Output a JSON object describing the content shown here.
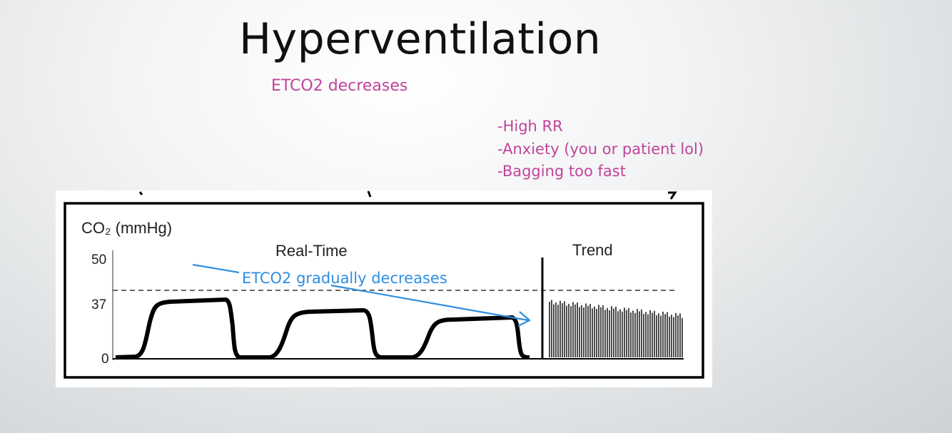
{
  "slide": {
    "title": "Hyperventilation",
    "subtitle": "ETCO2 decreases",
    "bullets": [
      "-High RR",
      "-Anxiety (you or patient lol)",
      "-Bagging too fast"
    ]
  },
  "capnogram": {
    "y_axis_label": "CO₂ (mmHg)",
    "y_ticks": [
      "50",
      "37",
      "0"
    ],
    "realtime_label": "Real-Time",
    "trend_label": "Trend",
    "annotation": "ETCO2 gradually decreases"
  },
  "colors": {
    "accent_text": "#c0449a",
    "annotation": "#2e8ee0",
    "waveform": "#000000"
  }
}
